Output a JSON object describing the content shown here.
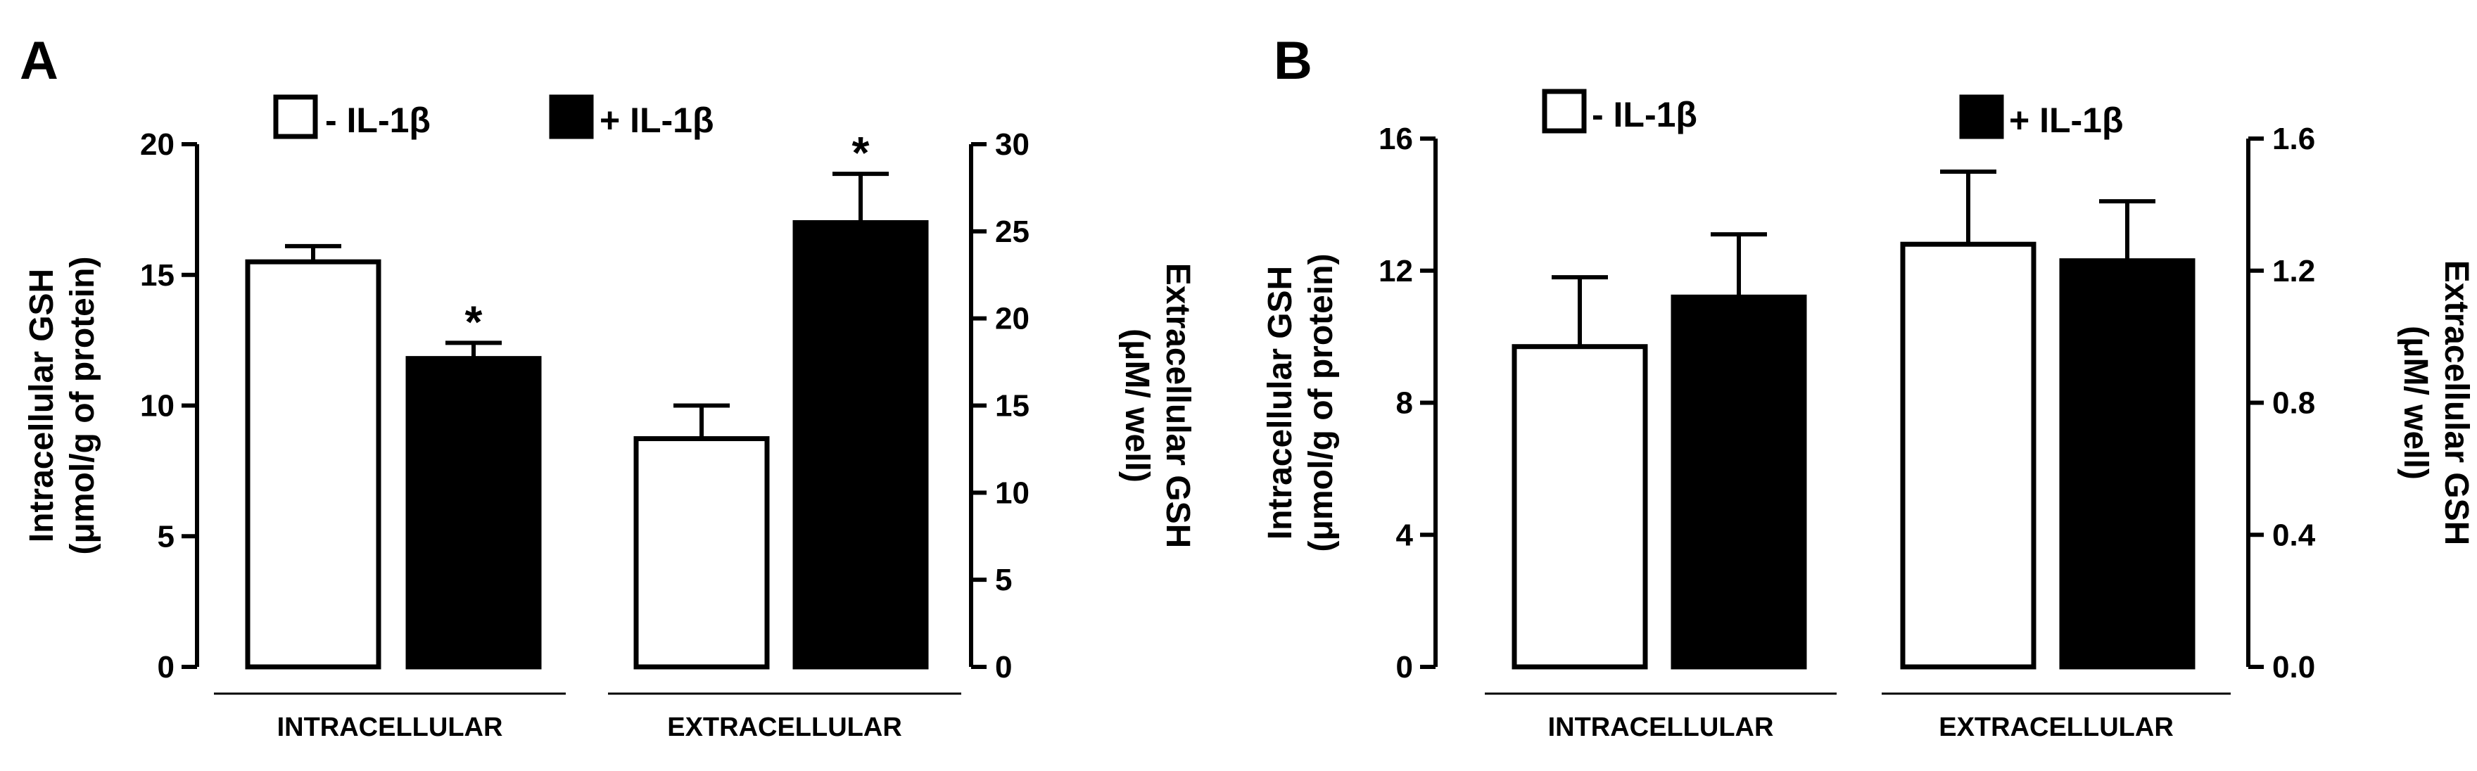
{
  "chart_data": [
    {
      "panel": "A",
      "type": "bar",
      "legend": [
        {
          "label": "- IL-1β",
          "color": "#ffffff"
        },
        {
          "label": "+ IL-1β",
          "color": "#000000"
        }
      ],
      "ylabel_left_line1": "Intracellular GSH",
      "ylabel_left_line2": "(μmol/g of protein)",
      "ylabel_right_line1": "Extracellular GSH",
      "ylabel_right_line2": "(μM/ well)",
      "yticks_left": [
        "0",
        "5",
        "10",
        "15",
        "20"
      ],
      "yticks_right": [
        "0",
        "5",
        "10",
        "15",
        "20",
        "25",
        "30"
      ],
      "ylim_left": [
        0,
        20
      ],
      "ylim_right": [
        0,
        30
      ],
      "groups": [
        "INTRACELLULAR",
        "EXTRACELLULAR"
      ],
      "bars": [
        {
          "group": "INTRACELLULAR",
          "condition": "- IL-1β",
          "axis": "left",
          "value": 15.5,
          "error": 0.6,
          "significant": false
        },
        {
          "group": "INTRACELLULAR",
          "condition": "+ IL-1β",
          "axis": "left",
          "value": 11.8,
          "error": 0.6,
          "significant": true
        },
        {
          "group": "EXTRACELLULAR",
          "condition": "- IL-1β",
          "axis": "right",
          "value": 13.1,
          "error": 1.9,
          "significant": false
        },
        {
          "group": "EXTRACELLULAR",
          "condition": "+ IL-1β",
          "axis": "right",
          "value": 25.5,
          "error": 2.8,
          "significant": true
        }
      ],
      "significance_marker": "*"
    },
    {
      "panel": "B",
      "type": "bar",
      "legend": [
        {
          "label": "- IL-1β",
          "color": "#ffffff"
        },
        {
          "label": "+ IL-1β",
          "color": "#000000"
        }
      ],
      "ylabel_left_line1": "Intracellular GSH",
      "ylabel_left_line2": "(μmol/g of protein)",
      "ylabel_right_line1": "Extracellular GSH",
      "ylabel_right_line2": "(μM/ well)",
      "yticks_left": [
        "0",
        "4",
        "8",
        "12",
        "16"
      ],
      "yticks_right": [
        "0.0",
        "0.4",
        "0.8",
        "1.2",
        "1.6"
      ],
      "ylim_left": [
        0,
        16
      ],
      "ylim_right": [
        0,
        1.6
      ],
      "groups": [
        "INTRACELLULAR",
        "EXTRACELLULAR"
      ],
      "bars": [
        {
          "group": "INTRACELLULAR",
          "condition": "- IL-1β",
          "axis": "left",
          "value": 9.7,
          "error": 2.1,
          "significant": false
        },
        {
          "group": "INTRACELLULAR",
          "condition": "+ IL-1β",
          "axis": "left",
          "value": 11.2,
          "error": 1.9,
          "significant": false
        },
        {
          "group": "EXTRACELLULAR",
          "condition": "- IL-1β",
          "axis": "right",
          "value": 1.28,
          "error": 0.22,
          "significant": false
        },
        {
          "group": "EXTRACELLULAR",
          "condition": "+ IL-1β",
          "axis": "right",
          "value": 1.23,
          "error": 0.18,
          "significant": false
        }
      ],
      "significance_marker": "*"
    }
  ]
}
